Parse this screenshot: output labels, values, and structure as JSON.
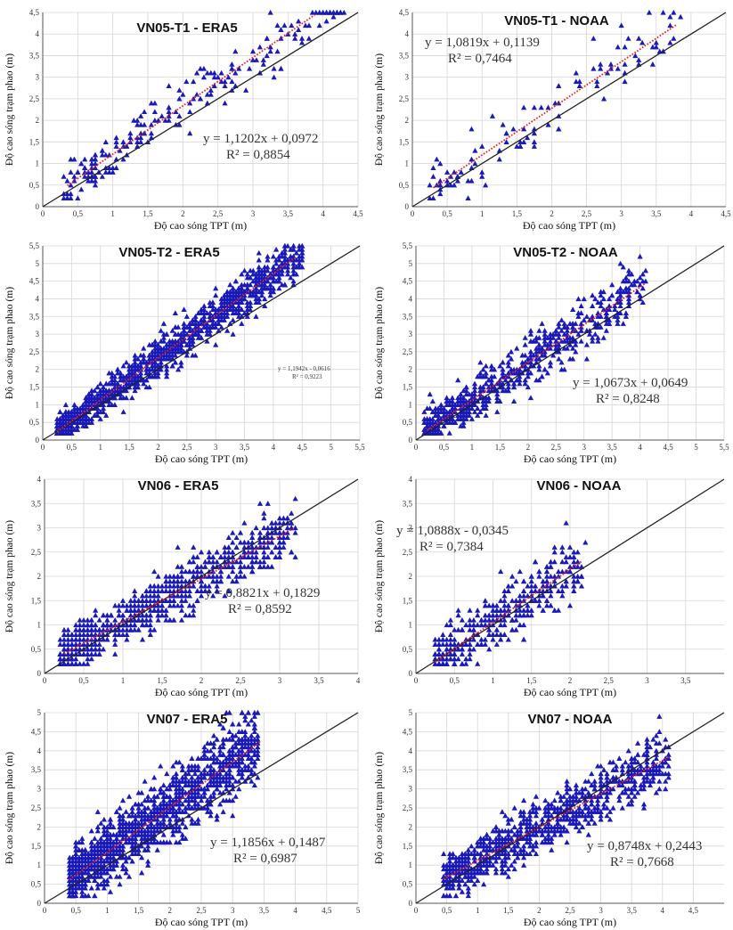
{
  "charts": [
    {
      "type": "scatter",
      "title": "VN05-T1 - ERA5",
      "xlabel": "Độ cao sóng TPT (m)",
      "ylabel": "Độ cao sóng trạm phao (m)",
      "xlim": [
        0,
        4.5
      ],
      "ylim": [
        0,
        4.5
      ],
      "xticks": [
        "0",
        "0,5",
        "1",
        "1,5",
        "2",
        "2,5",
        "3",
        "3,5",
        "4",
        "4,5"
      ],
      "yticks": [
        "0",
        "0,5",
        "1",
        "1,5",
        "2",
        "2,5",
        "3",
        "3,5",
        "4",
        "4,5"
      ],
      "equation": "y = 1,1202x + 0,0972",
      "r2": "R² = 0,8854",
      "fit": {
        "slope": 1.1202,
        "intercept": 0.0972,
        "x_range": [
          0.35,
          3.9
        ]
      },
      "n_points": 220,
      "x_range": [
        0.3,
        4.3
      ],
      "noise": 0.35
    },
    {
      "type": "scatter",
      "title": "VN05-T1 - NOAA",
      "xlabel": "Độ cao sóng TPT (m)",
      "ylabel": "Độ cao sóng trạm phao (m)",
      "xlim": [
        0,
        4.5
      ],
      "ylim": [
        0,
        4.5
      ],
      "xticks": [
        "0",
        "0,5",
        "1",
        "1,5",
        "2",
        "2,5",
        "3",
        "3,5",
        "4",
        "4,5"
      ],
      "yticks": [
        "0",
        "0,5",
        "1",
        "1,5",
        "2",
        "2,5",
        "3",
        "3,5",
        "4",
        "4,5"
      ],
      "equation": "y = 1,0819x + 0,1139",
      "r2": "R² = 0,7464",
      "fit": {
        "slope": 1.0819,
        "intercept": 0.1139,
        "x_range": [
          0.3,
          3.8
        ]
      },
      "n_points": 110,
      "x_range": [
        0.25,
        3.85
      ],
      "noise": 0.4
    },
    {
      "type": "scatter",
      "title": "VN05-T2 - ERA5",
      "xlabel": "Độ cao sóng TPT (m)",
      "ylabel": "Độ cao sóng trạm phao (m)",
      "xlim": [
        0,
        5.5
      ],
      "ylim": [
        0,
        5.5
      ],
      "xticks": [
        "0",
        "0,5",
        "1",
        "1,5",
        "2",
        "2,5",
        "3",
        "3,5",
        "4",
        "4,5",
        "5",
        "5,5"
      ],
      "yticks": [
        "0",
        "0,5",
        "1",
        "1,5",
        "2",
        "2,5",
        "3",
        "3,5",
        "4",
        "4,5",
        "5",
        "5,5"
      ],
      "equation": "y = 1,1942x - 0,0616",
      "r2": "R² = 0,9223",
      "fit": {
        "slope": 1.1942,
        "intercept": -0.0616,
        "x_range": [
          0.25,
          4.4
        ]
      },
      "n_points": 1300,
      "x_range": [
        0.25,
        4.5
      ],
      "noise": 0.33
    },
    {
      "type": "scatter",
      "title": "VN05-T2 - NOAA",
      "xlabel": "Độ cao sóng TPT (m)",
      "ylabel": "Độ cao sóng trạm phao (m)",
      "xlim": [
        0,
        5.5
      ],
      "ylim": [
        0,
        5.5
      ],
      "xticks": [
        "0",
        "0,5",
        "1",
        "1,5",
        "2",
        "2,5",
        "3",
        "3,5",
        "4",
        "4,5",
        "5",
        "5,5"
      ],
      "yticks": [
        "0",
        "0,5",
        "1",
        "1,5",
        "2",
        "2,5",
        "3",
        "3,5",
        "4",
        "4,5",
        "5",
        "5,5"
      ],
      "equation": "y = 1,0673x + 0,0649",
      "r2": "R² = 0,8248",
      "fit": {
        "slope": 1.0673,
        "intercept": 0.0649,
        "x_range": [
          0.2,
          4.1
        ]
      },
      "n_points": 650,
      "x_range": [
        0.15,
        4.1
      ],
      "noise": 0.45
    },
    {
      "type": "scatter",
      "title": "VN06 - ERA5",
      "xlabel": "Độ cao sóng TPT (m)",
      "ylabel": "Độ cao sóng trạm phao (m)",
      "xlim": [
        0,
        4
      ],
      "ylim": [
        0,
        4
      ],
      "xticks": [
        "0",
        "0,5",
        "1",
        "1,5",
        "2",
        "2,5",
        "3",
        "3,5",
        "4"
      ],
      "yticks": [
        "0",
        "0,5",
        "1",
        "1,5",
        "2",
        "2,5",
        "3",
        "3,5",
        "4"
      ],
      "equation": "y = 0,8821x + 0,1829",
      "r2": "R² = 0,8592",
      "fit": {
        "slope": 0.8821,
        "intercept": 0.1829,
        "x_range": [
          0.25,
          3.2
        ]
      },
      "n_points": 900,
      "x_range": [
        0.2,
        3.2
      ],
      "noise": 0.3
    },
    {
      "type": "scatter",
      "title": "VN06 - NOAA",
      "xlabel": "Độ cao sóng TPT (m)",
      "ylabel": "Độ cao sóng trạm phao (m)",
      "xlim": [
        0,
        4
      ],
      "ylim": [
        0,
        4
      ],
      "xticks": [
        "0",
        "0,5",
        "1",
        "1,5",
        "2",
        "2,5",
        "3",
        "3,5"
      ],
      "yticks": [
        "0",
        "0,5",
        "1",
        "1,5",
        "2",
        "2,5",
        "3",
        "3,5",
        "4"
      ],
      "equation": "y = 1,0888x - 0,0345",
      "r2": "R² = 0,7384",
      "fit": {
        "slope": 1.0888,
        "intercept": -0.0345,
        "x_range": [
          0.25,
          2.15
        ]
      },
      "n_points": 420,
      "x_range": [
        0.25,
        2.2
      ],
      "noise": 0.35
    },
    {
      "type": "scatter",
      "title": "VN07 - ERA5",
      "xlabel": "Độ cao sóng TPT (m)",
      "ylabel": "Độ cao sóng trạm phao (m)",
      "xlim": [
        0,
        5
      ],
      "ylim": [
        0,
        5
      ],
      "xticks": [
        "0",
        "0,5",
        "1",
        "1,5",
        "2",
        "2,5",
        "3",
        "3,5",
        "4",
        "4,5",
        "5"
      ],
      "yticks": [
        "0",
        "0,5",
        "1",
        "1,5",
        "2",
        "2,5",
        "3",
        "3,5",
        "4",
        "4,5",
        "5"
      ],
      "equation": "y = 1,1856x + 0,1487",
      "r2": "R² = 0,6987",
      "fit": {
        "slope": 1.1856,
        "intercept": 0.1487,
        "x_range": [
          0.4,
          3.45
        ]
      },
      "n_points": 1400,
      "x_range": [
        0.4,
        3.4
      ],
      "noise": 0.55
    },
    {
      "type": "scatter",
      "title": "VN07 - NOAA",
      "xlabel": "Độ cao sóng TPT (m)",
      "ylabel": "Độ cao sóng trạm phao (m)",
      "xlim": [
        0,
        5
      ],
      "ylim": [
        0,
        5
      ],
      "xticks": [
        "0",
        "0,5",
        "1",
        "1,5",
        "2",
        "2,5",
        "3",
        "3,5",
        "4",
        "4,5"
      ],
      "yticks": [
        "0",
        "0,5",
        "1",
        "1,5",
        "2",
        "2,5",
        "3",
        "3,5",
        "4",
        "4,5",
        "5"
      ],
      "equation": "y = 0,8748x + 0,2443",
      "r2": "R² = 0,7668",
      "fit": {
        "slope": 0.8748,
        "intercept": 0.2443,
        "x_range": [
          0.45,
          4.1
        ]
      },
      "n_points": 900,
      "x_range": [
        0.45,
        4.1
      ],
      "noise": 0.42
    }
  ],
  "colors": {
    "points": "#1a1ab8",
    "fit": "#e8201a",
    "ref_line": "#222222",
    "grid": "#d6d6d6",
    "axis": "#555555"
  }
}
